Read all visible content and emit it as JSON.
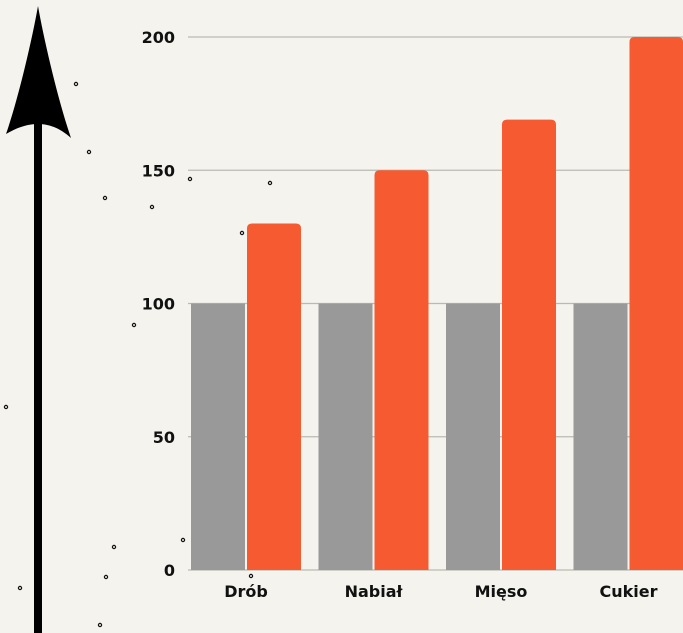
{
  "chart_data": {
    "type": "bar",
    "categories": [
      "Drób",
      "Nabiał",
      "Mięso",
      "Cukier"
    ],
    "series": [
      {
        "values": [
          100,
          100,
          100,
          100
        ],
        "color": "#999999"
      },
      {
        "values": [
          130,
          150,
          169,
          200
        ],
        "color": "#f55a31"
      }
    ],
    "yticks": [
      "0",
      "50",
      "100",
      "150",
      "200"
    ],
    "ylim": [
      0,
      200
    ],
    "grid": true,
    "gridline_color": "#b9bab0",
    "axis_color": "#000000",
    "decoration": "arrow-up-icon"
  }
}
